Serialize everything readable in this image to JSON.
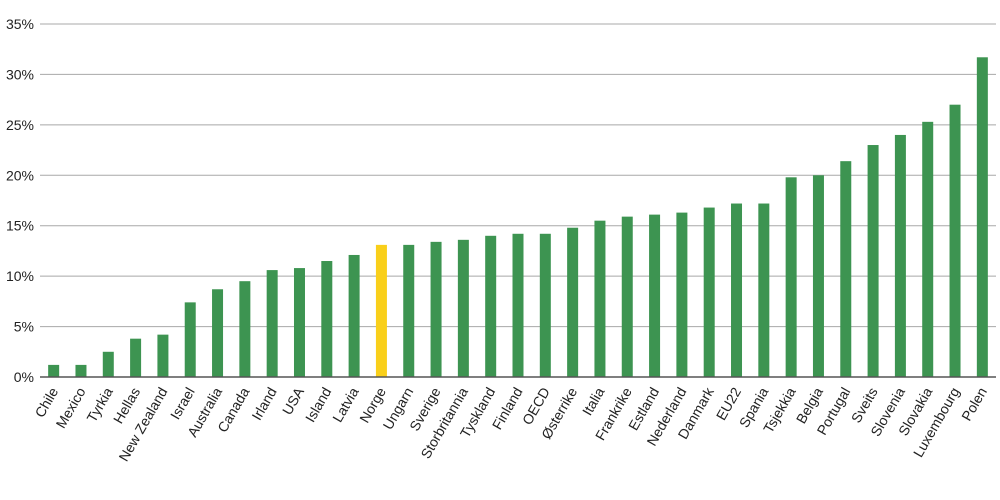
{
  "chart_data": {
    "type": "bar",
    "title": "",
    "xlabel": "",
    "ylabel": "",
    "ylim": [
      0,
      35
    ],
    "yticks": [
      0,
      5,
      10,
      15,
      20,
      25,
      30,
      35
    ],
    "ytick_labels": [
      "0%",
      "5%",
      "10%",
      "15%",
      "20%",
      "25%",
      "30%",
      "35%"
    ],
    "grid": true,
    "legend": "none",
    "categories": [
      "Chile",
      "Mexico",
      "Tyrkia",
      "Hellas",
      "New Zealand",
      "Israel",
      "Australia",
      "Canada",
      "Irland",
      "USA",
      "Island",
      "Latvia",
      "Norge",
      "Ungarn",
      "Sverige",
      "Storbritannia",
      "Tyskland",
      "Finland",
      "OECD",
      "Østerrike",
      "Italia",
      "Frankrike",
      "Estland",
      "Nederland",
      "Danmark",
      "EU22",
      "Spania",
      "Tsjekkia",
      "Belgia",
      "Portugal",
      "Sveits",
      "Slovenia",
      "Slovakia",
      "Luxembourg",
      "Polen"
    ],
    "values": [
      1.2,
      1.2,
      2.5,
      3.8,
      4.2,
      7.4,
      8.7,
      9.5,
      10.6,
      10.8,
      11.5,
      12.1,
      13.1,
      13.1,
      13.4,
      13.6,
      14.0,
      14.2,
      14.2,
      14.8,
      15.5,
      15.9,
      16.1,
      16.3,
      16.8,
      17.2,
      17.2,
      19.8,
      20.0,
      21.4,
      23.0,
      24.0,
      25.3,
      27.0,
      31.7
    ],
    "highlight_category": "Norge",
    "colors": {
      "bar": "#3d9451",
      "highlight": "#f9cf1a",
      "grid": "#a8a8a8",
      "axis": "#555555",
      "text": "#222222"
    }
  }
}
